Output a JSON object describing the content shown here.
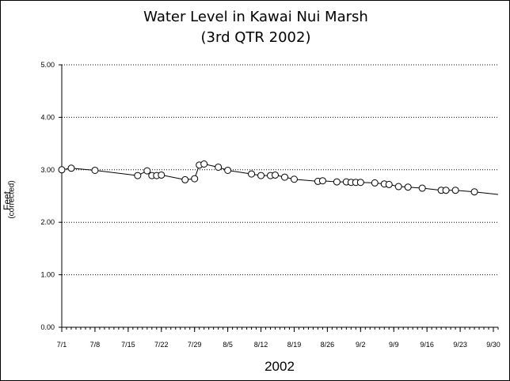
{
  "chart_data": {
    "type": "line",
    "title": "Water Level in Kawai Nui Marsh",
    "subtitle": "(3rd QTR 2002)",
    "xlabel": "2002",
    "ylabel": "Feet",
    "ylabel_sub": "(corrected)",
    "ylim": [
      0,
      5
    ],
    "yticks": [
      {
        "value": 0,
        "label": "0.00"
      },
      {
        "value": 1,
        "label": "1.00"
      },
      {
        "value": 2,
        "label": "2.00"
      },
      {
        "value": 3,
        "label": "3.00"
      },
      {
        "value": 4,
        "label": "4.00"
      },
      {
        "value": 5,
        "label": "5.00"
      }
    ],
    "xlim": [
      "2002-07-01",
      "2002-10-01"
    ],
    "xticks": [
      {
        "date": "2002-07-01",
        "label": "7/1"
      },
      {
        "date": "2002-07-08",
        "label": "7/8"
      },
      {
        "date": "2002-07-15",
        "label": "7/15"
      },
      {
        "date": "2002-07-22",
        "label": "7/22"
      },
      {
        "date": "2002-07-29",
        "label": "7/29"
      },
      {
        "date": "2002-08-05",
        "label": "8/5"
      },
      {
        "date": "2002-08-12",
        "label": "8/12"
      },
      {
        "date": "2002-08-19",
        "label": "8/19"
      },
      {
        "date": "2002-08-26",
        "label": "8/26"
      },
      {
        "date": "2002-09-02",
        "label": "9/2"
      },
      {
        "date": "2002-09-09",
        "label": "9/9"
      },
      {
        "date": "2002-09-16",
        "label": "9/16"
      },
      {
        "date": "2002-09-23",
        "label": "9/23"
      },
      {
        "date": "2002-09-30",
        "label": "9/30"
      }
    ],
    "grid": "horizontal dotted",
    "legend": "none",
    "colors": {
      "line": "#000000",
      "marker_fill": "#ffffff",
      "marker_stroke": "#000000",
      "grid": "#000000"
    },
    "series": [
      {
        "marker": "circle",
        "points": [
          {
            "x": "2002-07-01",
            "y": 3.0
          },
          {
            "x": "2002-07-03",
            "y": 3.03
          },
          {
            "x": "2002-07-08",
            "y": 2.99
          },
          {
            "x": "2002-07-17",
            "y": 2.89
          },
          {
            "x": "2002-07-19",
            "y": 2.98
          },
          {
            "x": "2002-07-20",
            "y": 2.89
          },
          {
            "x": "2002-07-21",
            "y": 2.89
          },
          {
            "x": "2002-07-22",
            "y": 2.9
          },
          {
            "x": "2002-07-27",
            "y": 2.81
          },
          {
            "x": "2002-07-29",
            "y": 2.83
          },
          {
            "x": "2002-07-30",
            "y": 3.09
          },
          {
            "x": "2002-07-31",
            "y": 3.11
          },
          {
            "x": "2002-08-03",
            "y": 3.05
          },
          {
            "x": "2002-08-05",
            "y": 2.99
          },
          {
            "x": "2002-08-10",
            "y": 2.92
          },
          {
            "x": "2002-08-12",
            "y": 2.89
          },
          {
            "x": "2002-08-14",
            "y": 2.89
          },
          {
            "x": "2002-08-15",
            "y": 2.9
          },
          {
            "x": "2002-08-17",
            "y": 2.86
          },
          {
            "x": "2002-08-19",
            "y": 2.82
          },
          {
            "x": "2002-08-24",
            "y": 2.78
          },
          {
            "x": "2002-08-25",
            "y": 2.79
          },
          {
            "x": "2002-08-28",
            "y": 2.77
          },
          {
            "x": "2002-08-30",
            "y": 2.77
          },
          {
            "x": "2002-08-31",
            "y": 2.76
          },
          {
            "x": "2002-09-01",
            "y": 2.76
          },
          {
            "x": "2002-09-02",
            "y": 2.76
          },
          {
            "x": "2002-09-05",
            "y": 2.75
          },
          {
            "x": "2002-09-07",
            "y": 2.73
          },
          {
            "x": "2002-09-08",
            "y": 2.72
          },
          {
            "x": "2002-09-10",
            "y": 2.68
          },
          {
            "x": "2002-09-12",
            "y": 2.67
          },
          {
            "x": "2002-09-15",
            "y": 2.65
          },
          {
            "x": "2002-09-19",
            "y": 2.61
          },
          {
            "x": "2002-09-20",
            "y": 2.61
          },
          {
            "x": "2002-09-22",
            "y": 2.61
          },
          {
            "x": "2002-09-26",
            "y": 2.58
          }
        ],
        "trend_line_to": {
          "x": "2002-10-01",
          "y": 2.53
        }
      }
    ]
  }
}
